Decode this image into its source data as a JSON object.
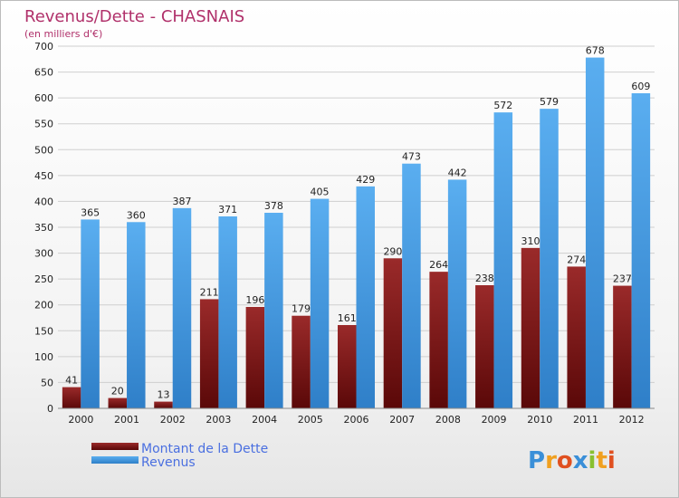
{
  "chart_data": {
    "type": "bar",
    "title": "Revenus/Dette - CHASNAIS",
    "subtitle": "(en milliers d'€)",
    "categories": [
      "2000",
      "2001",
      "2002",
      "2003",
      "2004",
      "2005",
      "2006",
      "2007",
      "2008",
      "2009",
      "2010",
      "2011",
      "2012"
    ],
    "series": [
      {
        "name": "Montant de la Dette",
        "color": "#7a1515",
        "values": [
          41,
          20,
          13,
          211,
          196,
          179,
          161,
          290,
          264,
          238,
          310,
          274,
          237
        ]
      },
      {
        "name": "Revenus",
        "color": "#4a9de0",
        "values": [
          365,
          360,
          387,
          371,
          378,
          405,
          429,
          473,
          442,
          572,
          579,
          678,
          609
        ]
      }
    ],
    "ylim": [
      0,
      700
    ],
    "yticks": [
      0,
      50,
      100,
      150,
      200,
      250,
      300,
      350,
      400,
      450,
      500,
      550,
      600,
      650,
      700
    ],
    "grid": true,
    "legend_position": "bottom-left"
  },
  "logo_text": "Proxiti"
}
